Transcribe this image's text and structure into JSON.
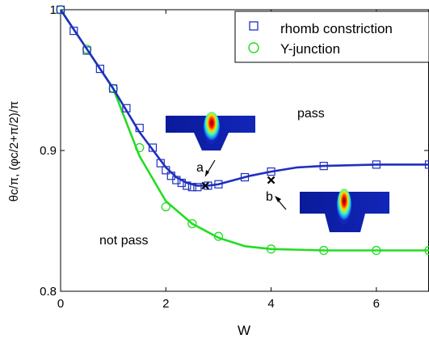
{
  "chart_data": {
    "type": "line",
    "xlabel": "W",
    "ylabel": "θc/π,  (φc/2+π/2)/π",
    "xlim": [
      0,
      7
    ],
    "ylim": [
      0.8,
      1.0
    ],
    "xticks": [
      "0",
      "2",
      "4",
      "6"
    ],
    "yticks": [
      "0.8",
      "0.9",
      "1"
    ],
    "grid": false,
    "legend_position": "top-right",
    "series": [
      {
        "name": "rhomb constriction",
        "marker": "square",
        "color": "#1f2fbf",
        "markers": {
          "x": [
            0,
            0.25,
            0.5,
            0.75,
            1.0,
            1.25,
            1.5,
            1.75,
            1.9,
            2.0,
            2.1,
            2.2,
            2.3,
            2.4,
            2.5,
            2.6,
            2.8,
            3.0,
            3.5,
            4.0,
            5.0,
            6.0,
            7.0
          ],
          "y": [
            1.0,
            0.985,
            0.971,
            0.958,
            0.944,
            0.93,
            0.916,
            0.902,
            0.891,
            0.886,
            0.882,
            0.879,
            0.877,
            0.875,
            0.874,
            0.874,
            0.875,
            0.876,
            0.881,
            0.885,
            0.889,
            0.89,
            0.89
          ]
        },
        "curve": {
          "x": [
            0,
            0.5,
            1.0,
            1.5,
            2.0,
            2.2,
            2.4,
            2.6,
            2.8,
            3.0,
            3.3,
            3.6,
            4.0,
            4.5,
            5.0,
            6.0,
            7.0
          ],
          "y": [
            1.0,
            0.972,
            0.944,
            0.913,
            0.888,
            0.881,
            0.877,
            0.875,
            0.875,
            0.876,
            0.879,
            0.882,
            0.885,
            0.888,
            0.889,
            0.89,
            0.89
          ]
        }
      },
      {
        "name": "Y-junction",
        "marker": "circle",
        "color": "#22dd22",
        "markers": {
          "x": [
            0,
            0.5,
            1.0,
            1.5,
            2.0,
            2.5,
            3.0,
            4.0,
            5.0,
            6.0,
            7.0
          ],
          "y": [
            1.0,
            0.972,
            0.944,
            0.902,
            0.86,
            0.848,
            0.839,
            0.83,
            0.829,
            0.829,
            0.829
          ]
        },
        "curve": {
          "x": [
            0,
            0.5,
            1.0,
            1.5,
            2.0,
            2.5,
            3.0,
            3.5,
            4.0,
            5.0,
            6.0,
            7.0
          ],
          "y": [
            1.0,
            0.972,
            0.944,
            0.896,
            0.864,
            0.848,
            0.838,
            0.832,
            0.83,
            0.829,
            0.829,
            0.829
          ]
        }
      }
    ],
    "points": [
      {
        "label": "a",
        "x": 2.75,
        "y": 0.875
      },
      {
        "label": "b",
        "x": 4.0,
        "y": 0.879
      }
    ],
    "annotations": [
      "pass",
      "not pass"
    ]
  }
}
